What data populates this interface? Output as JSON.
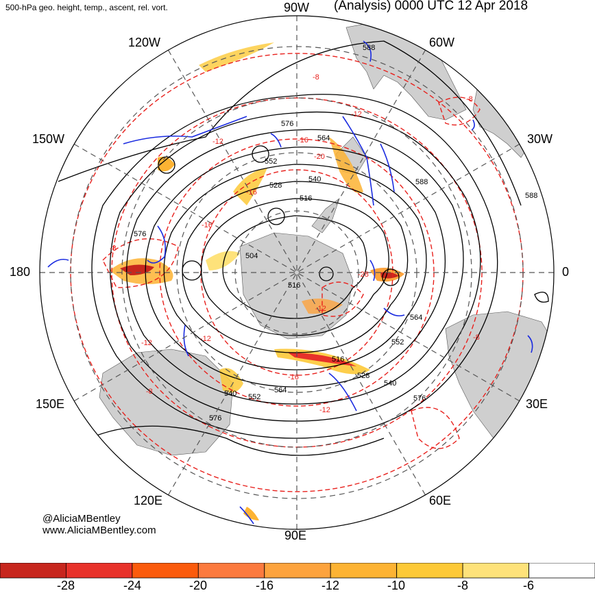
{
  "header": {
    "left_title": "500-hPa geo. height, temp., ascent, rel. vort.",
    "right_title": "(Analysis) 0000 UTC 12 Apr 2018"
  },
  "longitude_labels": {
    "n90w": "90W",
    "n120w": "120W",
    "n60w": "60W",
    "n150w": "150W",
    "n30w": "30W",
    "w180": "180",
    "e0": "0",
    "s150e": "150E",
    "s30e": "30E",
    "s120e": "120E",
    "s60e": "60E",
    "s90e": "90E"
  },
  "credit": {
    "handle": "@AliciaMBentley",
    "website": "www.AliciaMBentley.com"
  },
  "height_labels": [
    "576",
    "564",
    "552",
    "540",
    "528",
    "516",
    "504",
    "588",
    "588",
    "588",
    "576",
    "564",
    "552",
    "540",
    "528",
    "516",
    "576",
    "552",
    "540",
    "564",
    "576",
    "516"
  ],
  "temp_labels": [
    "-8",
    "-8",
    "-12",
    "-16",
    "-20",
    "-12",
    "-16",
    "-28",
    "-12",
    "-8",
    "-12",
    "-16",
    "-12",
    "-8",
    "-16",
    "-8",
    "-12"
  ],
  "colors": {
    "height_contour": "#000000",
    "temp_contour": "#e8201c",
    "vorticity": "#1a2be0",
    "land": "#cfcfcf",
    "ascent_strong": "#c00000",
    "ascent_weak": "#ffe680"
  },
  "colorbar": {
    "colors": [
      "#c7261d",
      "#e8322a",
      "#fb5b0c",
      "#fc7a3e",
      "#fda33d",
      "#fdb333",
      "#fdc937",
      "#fee27a",
      "#ffffff"
    ],
    "tick_labels": [
      "-28",
      "-24",
      "-20",
      "-16",
      "-12",
      "-10",
      "-8",
      "-6"
    ]
  }
}
